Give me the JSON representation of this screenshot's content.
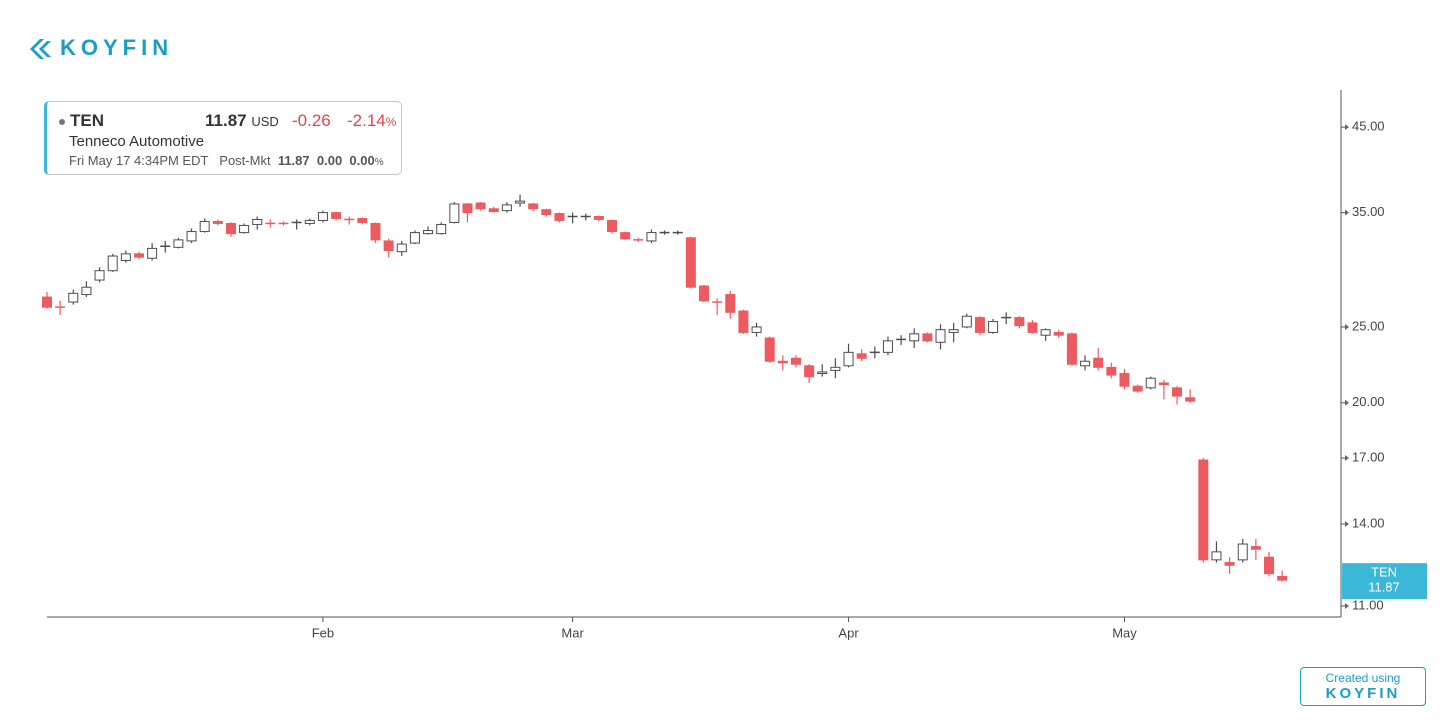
{
  "branding": {
    "logo": "KOYFIN",
    "footer_caption": "Created using",
    "footer_logo": "KOYFIN"
  },
  "info_box": {
    "symbol": "TEN",
    "price": "11.87",
    "currency": "USD",
    "change": "-0.26",
    "change_pct": "-2.14",
    "pct_sign": "%",
    "name": "Tenneco Automotive",
    "timestamp": "Fri May 17 4:34PM EDT",
    "session": "Post-Mkt",
    "session_price": "11.87",
    "session_change": "0.00",
    "session_change_pct": "0.00",
    "session_pct_sign": "%"
  },
  "chart_data": {
    "type": "candlestick",
    "log_scale": true,
    "up_color": "#ffffff",
    "down_color": "#ec5b60",
    "outline_color": "#4d4d4d",
    "last_price_label": {
      "name": "TEN",
      "label": "11.87"
    },
    "label_color": "#3bb7d8",
    "categories": [
      null,
      null,
      null,
      null,
      null,
      null,
      null,
      null,
      null,
      null,
      null,
      null,
      null,
      null,
      null,
      null,
      null,
      null,
      null,
      null,
      null,
      "Feb",
      null,
      null,
      null,
      null,
      null,
      null,
      null,
      null,
      null,
      null,
      null,
      null,
      null,
      null,
      null,
      null,
      null,
      null,
      "Mar",
      null,
      null,
      null,
      null,
      null,
      null,
      null,
      null,
      null,
      null,
      null,
      null,
      null,
      null,
      null,
      null,
      null,
      null,
      null,
      null,
      "Apr",
      null,
      null,
      null,
      null,
      null,
      null,
      null,
      null,
      null,
      null,
      null,
      null,
      null,
      null,
      null,
      null,
      null,
      null,
      null,
      null,
      "May",
      null,
      null,
      null,
      null,
      null,
      null,
      null,
      null,
      null,
      null,
      null,
      null
    ],
    "open": [
      27.3,
      26.6,
      26.9,
      27.5,
      28.7,
      29.5,
      30.4,
      31.0,
      30.6,
      31.6,
      31.6,
      32.2,
      33.1,
      34.1,
      33.9,
      33.0,
      33.8,
      34.0,
      34.0,
      33.9,
      33.9,
      34.2,
      35.0,
      34.4,
      34.4,
      33.9,
      32.2,
      31.2,
      32.0,
      32.9,
      32.9,
      34.0,
      35.9,
      36.0,
      35.4,
      35.2,
      36.0,
      35.9,
      35.3,
      34.9,
      34.5,
      34.5,
      34.6,
      34.2,
      33.0,
      32.4,
      32.2,
      32.9,
      33.0,
      32.5,
      28.2,
      27.0,
      27.5,
      26.2,
      24.6,
      24.2,
      22.6,
      22.8,
      22.3,
      21.8,
      22.0,
      22.3,
      23.1,
      23.1,
      23.2,
      24.0,
      24.0,
      24.5,
      23.9,
      24.6,
      25.0,
      25.7,
      24.6,
      25.6,
      25.7,
      25.3,
      24.4,
      24.6,
      24.5,
      22.3,
      22.8,
      22.2,
      21.8,
      21.0,
      20.9,
      21.2,
      20.9,
      20.3,
      16.9,
      12.6,
      12.5,
      12.6,
      13.1,
      12.7,
      12.0
    ],
    "high": [
      27.7,
      27.0,
      27.9,
      28.6,
      29.8,
      31.0,
      31.3,
      31.2,
      32.0,
      32.2,
      32.5,
      33.4,
      34.4,
      34.3,
      34.0,
      33.9,
      34.6,
      34.3,
      34.1,
      34.3,
      34.4,
      35.2,
      35.1,
      34.6,
      34.5,
      34.0,
      32.4,
      32.2,
      33.2,
      33.6,
      34.0,
      36.1,
      36.0,
      36.1,
      35.6,
      36.1,
      36.9,
      36.0,
      35.4,
      35.0,
      35.0,
      34.9,
      34.7,
      34.3,
      33.1,
      32.5,
      33.3,
      33.2,
      33.2,
      32.6,
      28.3,
      27.2,
      27.8,
      26.3,
      25.3,
      24.3,
      23.0,
      23.0,
      22.4,
      22.4,
      22.8,
      23.8,
      23.4,
      23.6,
      24.3,
      24.4,
      24.9,
      24.6,
      25.2,
      25.3,
      26.0,
      25.8,
      25.6,
      26.1,
      25.8,
      25.5,
      24.9,
      24.8,
      24.6,
      23.0,
      23.5,
      22.5,
      22.1,
      21.1,
      21.6,
      21.4,
      21.0,
      20.8,
      17.0,
      13.3,
      12.7,
      13.4,
      13.4,
      12.9,
      12.2
    ],
    "low": [
      26.4,
      25.9,
      26.7,
      27.3,
      28.5,
      29.4,
      30.2,
      30.5,
      30.4,
      31.1,
      31.5,
      32.0,
      33.0,
      33.7,
      32.6,
      32.9,
      33.3,
      33.5,
      33.7,
      33.3,
      33.7,
      34.0,
      34.2,
      33.8,
      33.8,
      32.0,
      30.7,
      30.8,
      31.9,
      32.8,
      32.8,
      33.9,
      34.0,
      35.2,
      35.0,
      35.0,
      35.6,
      35.2,
      34.6,
      34.0,
      33.9,
      34.2,
      34.1,
      32.9,
      32.3,
      32.1,
      32.0,
      32.8,
      32.8,
      28.0,
      26.9,
      25.9,
      25.6,
      24.5,
      24.3,
      22.5,
      22.0,
      22.2,
      21.2,
      21.6,
      21.5,
      22.2,
      22.6,
      22.8,
      23.0,
      23.7,
      23.5,
      23.9,
      23.4,
      23.9,
      24.9,
      24.4,
      24.5,
      25.2,
      24.9,
      24.5,
      24.0,
      24.2,
      22.3,
      22.0,
      22.0,
      21.5,
      20.8,
      20.6,
      20.8,
      20.2,
      19.9,
      20.0,
      12.5,
      12.5,
      12.1,
      12.5,
      12.6,
      12.0,
      11.82
    ],
    "close": [
      26.5,
      26.5,
      27.6,
      28.1,
      29.5,
      30.8,
      31.0,
      30.7,
      31.5,
      31.7,
      32.3,
      33.1,
      34.1,
      33.9,
      32.9,
      33.7,
      34.3,
      33.9,
      33.9,
      34.0,
      34.2,
      35.0,
      34.4,
      34.3,
      34.0,
      32.3,
      31.3,
      31.9,
      33.0,
      33.2,
      33.8,
      35.9,
      35.0,
      35.4,
      35.1,
      35.8,
      36.2,
      35.4,
      34.8,
      34.2,
      34.6,
      34.6,
      34.3,
      33.1,
      32.4,
      32.3,
      33.0,
      33.0,
      33.0,
      28.1,
      27.0,
      26.9,
      26.1,
      24.6,
      25.0,
      22.6,
      22.5,
      22.4,
      21.6,
      21.9,
      22.2,
      23.2,
      22.8,
      23.2,
      24.0,
      24.1,
      24.5,
      24.0,
      24.8,
      24.8,
      25.8,
      24.6,
      25.4,
      25.7,
      25.1,
      24.6,
      24.8,
      24.4,
      22.4,
      22.6,
      22.2,
      21.7,
      21.0,
      20.7,
      21.5,
      21.1,
      20.4,
      20.1,
      12.6,
      12.9,
      12.4,
      13.2,
      13.0,
      12.1,
      11.87
    ],
    "ylim": [
      10.65,
      50.2
    ],
    "yticks": [
      {
        "value": 11,
        "label": "11.00"
      },
      {
        "value": 14,
        "label": "14.00"
      },
      {
        "value": 17,
        "label": "17.00"
      },
      {
        "value": 20,
        "label": "20.00"
      },
      {
        "value": 25,
        "label": "25.00"
      },
      {
        "value": 35,
        "label": "35.00"
      },
      {
        "value": 45,
        "label": "45.00"
      }
    ]
  }
}
